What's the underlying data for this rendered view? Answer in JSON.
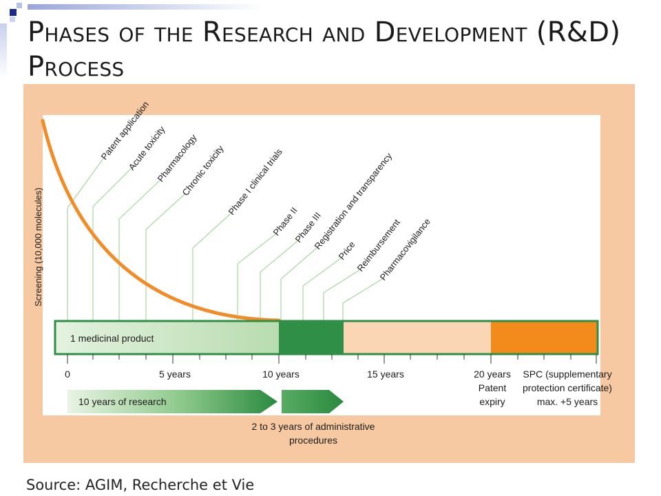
{
  "title": {
    "line1": "Phases of the Research and Development (R&D)",
    "line2": "Process"
  },
  "source": "Source: AGIM, Recherche et Vie",
  "diagram": {
    "screening_label": "Screening (10,000 molecules)",
    "milestones": [
      "Patent application",
      "Acute toxicity",
      "Pharmacology",
      "Chronic toxicity",
      "Phase I clinical trials",
      "Phase II",
      "Phase III",
      "Registration and transparency",
      "Price",
      "Reimbursement",
      "Pharmacovigilance"
    ],
    "bar_label": "1 medicinal product",
    "axis": {
      "t0": "0",
      "t5": "5 years",
      "t10": "10 years",
      "t15": "15 years",
      "t20": "20 years",
      "t20_sub1": "Patent",
      "t20_sub2": "expiry",
      "spc1": "SPC (supplementary",
      "spc2": "protection certificate)",
      "spc3": "max. +5 years"
    },
    "research_label": "10 years of research",
    "admin_label_1": "2 to 3 years of administrative",
    "admin_label_2": "procedures",
    "colors": {
      "panel": "#f7c9a2",
      "curve": "#f28c28",
      "research": "#cfe8c8",
      "admin": "#2f8f46",
      "patent": "#fbd6b4",
      "spc": "#f28a1c",
      "border": "#2f8f46"
    }
  }
}
